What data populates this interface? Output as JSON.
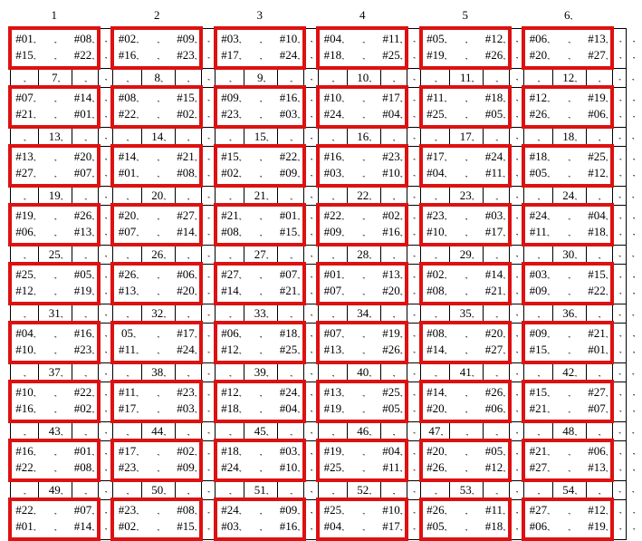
{
  "formatting_mark": ".,",
  "colors": {
    "block_border": "#dd1111",
    "grid_line": "#000000",
    "text": "#000000",
    "background": "#ffffff"
  },
  "column_headers": [
    "1",
    "2",
    "3",
    "4",
    "5",
    "6"
  ],
  "column_header_has_mark": [
    false,
    false,
    false,
    false,
    false,
    true
  ],
  "bands": [
    {
      "blocks": [
        [
          "#01",
          "#08",
          "#15",
          "#22"
        ],
        [
          "#02",
          "#09",
          "#16",
          "#23"
        ],
        [
          "#03",
          "#10",
          "#17",
          "#24"
        ],
        [
          "#04",
          "#11",
          "#18",
          "#25"
        ],
        [
          "#05",
          "#12",
          "#19",
          "#26"
        ],
        [
          "#06",
          "#13",
          "#20",
          "#27"
        ]
      ]
    },
    {
      "blocks": [
        [
          "#07",
          "#14",
          "#21",
          "#01"
        ],
        [
          "#08",
          "#15",
          "#22",
          "#02"
        ],
        [
          "#09",
          "#16",
          "#23",
          "#03"
        ],
        [
          "#10",
          "#17",
          "#24",
          "#04"
        ],
        [
          "#11",
          "#18",
          "#25",
          "#05"
        ],
        [
          "#12",
          "#19",
          "#26",
          "#06"
        ]
      ]
    },
    {
      "blocks": [
        [
          "#13",
          "#20",
          "#27",
          "#07"
        ],
        [
          "#14",
          "#21",
          "#01",
          "#08"
        ],
        [
          "#15",
          "#22",
          "#02",
          "#09"
        ],
        [
          "#16",
          "#23",
          "#03",
          "#10"
        ],
        [
          "#17",
          "#24",
          "#04",
          "#11"
        ],
        [
          "#18",
          "#25",
          "#05",
          "#12"
        ]
      ]
    },
    {
      "blocks": [
        [
          "#19",
          "#26",
          "#06",
          "#13"
        ],
        [
          "#20",
          "#27",
          "#07",
          "#14"
        ],
        [
          "#21",
          "#01",
          "#08",
          "#15"
        ],
        [
          "#22",
          "#02",
          "#09",
          "#16"
        ],
        [
          "#23",
          "#03",
          "#10",
          "#17"
        ],
        [
          "#24",
          "#04",
          "#11",
          "#18"
        ]
      ]
    },
    {
      "blocks": [
        [
          "#25",
          "#05",
          "#12",
          "#19"
        ],
        [
          "#26",
          "#06",
          "#13",
          "#20"
        ],
        [
          "#27",
          "#07",
          "#14",
          "#21"
        ],
        [
          "#01",
          "#13",
          "#07",
          "#20"
        ],
        [
          "#02",
          "#14",
          "#08",
          "#21"
        ],
        [
          "#03",
          "#15",
          "#09",
          "#22"
        ]
      ]
    },
    {
      "blocks": [
        [
          "#04",
          "#16",
          "#10",
          "#23"
        ],
        [
          "05",
          "#17",
          "#11",
          "#24"
        ],
        [
          "#06",
          "#18",
          "#12",
          "#25"
        ],
        [
          "#07",
          "#19",
          "#13",
          "#26"
        ],
        [
          "#08",
          "#20",
          "#14",
          "#27"
        ],
        [
          "#09",
          "#21",
          "#15",
          "#01"
        ]
      ]
    },
    {
      "blocks": [
        [
          "#10",
          "#22",
          "#16",
          "#02"
        ],
        [
          "#11",
          "#23",
          "#17",
          "#03"
        ],
        [
          "#12",
          "#24",
          "#18",
          "#04"
        ],
        [
          "#13",
          "#25",
          "#19",
          "#05"
        ],
        [
          "#14",
          "#26",
          "#20",
          "#06"
        ],
        [
          "#15",
          "#27",
          "#21",
          "#07"
        ]
      ]
    },
    {
      "blocks": [
        [
          "#16",
          "#01",
          "#22",
          "#08"
        ],
        [
          "#17",
          "#02",
          "#23",
          "#09"
        ],
        [
          "#18",
          "#03",
          "#24",
          "#10"
        ],
        [
          "#19",
          "#04",
          "#25",
          "#11"
        ],
        [
          "#20",
          "#05",
          "#26",
          "#12"
        ],
        [
          "#21",
          "#06",
          "#27",
          "#13"
        ]
      ]
    },
    {
      "blocks": [
        [
          "#22",
          "#07",
          "#01",
          "#14"
        ],
        [
          "#23",
          "#08",
          "#02",
          "#15"
        ],
        [
          "#24",
          "#09",
          "#03",
          "#16"
        ],
        [
          "#25",
          "#10",
          "#04",
          "#17"
        ],
        [
          "#26",
          "#11",
          "#05",
          "#18"
        ],
        [
          "#27",
          "#12",
          "#06",
          "#19"
        ]
      ]
    }
  ],
  "separator_rows": [
    {
      "values": [
        "7",
        "8",
        "9",
        "10",
        "11",
        "12"
      ]
    },
    {
      "values": [
        "13",
        "14",
        "15",
        "16",
        "17",
        "18"
      ]
    },
    {
      "values": [
        "19",
        "20",
        "21",
        "22",
        "23",
        "24"
      ]
    },
    {
      "values": [
        "25",
        "26",
        "27",
        "28",
        "29",
        "30"
      ]
    },
    {
      "values": [
        "31",
        "32",
        "33",
        "34",
        "35",
        "36"
      ]
    },
    {
      "values": [
        "37",
        "38",
        "39",
        "40",
        "41",
        "42"
      ]
    },
    {
      "values": [
        "43",
        "44",
        "45",
        "46",
        "47",
        "48"
      ],
      "left_cell_number_index": 4
    },
    {
      "values": [
        "49",
        "50",
        "51",
        "52",
        "53",
        "54"
      ]
    }
  ]
}
